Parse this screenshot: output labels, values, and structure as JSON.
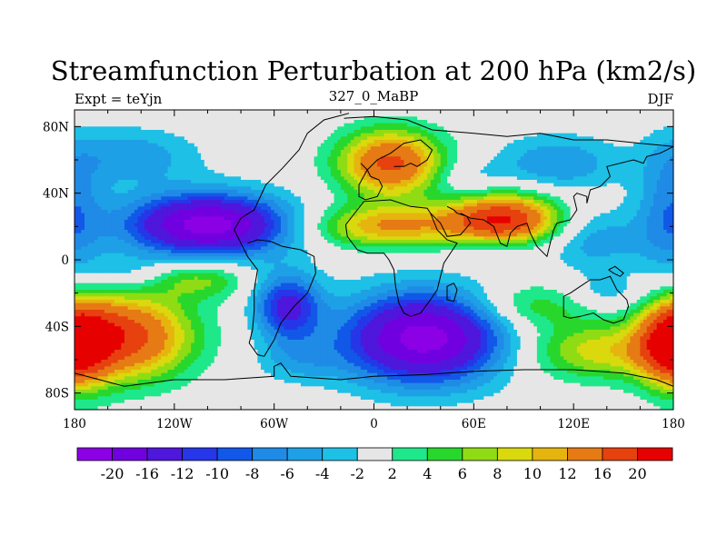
{
  "chart_data": {
    "type": "heatmap",
    "title": "Streamfunction Perturbation at 200 hPa (km2/s)",
    "left_label": "Expt = teYjn",
    "center_label": "327_0_MaBP",
    "right_label": "DJF",
    "x_ticks": [
      "180",
      "120W",
      "60W",
      "0",
      "60E",
      "120E",
      "180"
    ],
    "y_ticks": [
      "80N",
      "40N",
      "0",
      "40S",
      "80S"
    ],
    "xlim": [
      -180,
      180
    ],
    "ylim": [
      -90,
      90
    ],
    "x_tick_values": [
      -180,
      -120,
      -60,
      0,
      60,
      120,
      180
    ],
    "y_tick_values": [
      80,
      40,
      0,
      -40,
      -80
    ],
    "colorbar_labels": [
      "-20",
      "-16",
      "-12",
      "-10",
      "-8",
      "-6",
      "-4",
      "-2",
      "2",
      "4",
      "6",
      "8",
      "10",
      "12",
      "16",
      "20"
    ],
    "colorbar_colors": [
      "#8c00e6",
      "#7100e0",
      "#4f16dc",
      "#2537e8",
      "#1258e8",
      "#1f8be6",
      "#1ea0e6",
      "#1ec0e6",
      "#e6e6e6",
      "#1ee88a",
      "#28d72c",
      "#8fdc14",
      "#d9d90e",
      "#e6b40e",
      "#e67a14",
      "#e6410e",
      "#e60000"
    ],
    "background_color": "#e6e6e6",
    "anomalies": [
      {
        "lon": -100,
        "lat": 21,
        "sx": 34,
        "sy": 13,
        "amp": -22
      },
      {
        "lon": -145,
        "lat": 62,
        "sx": 28,
        "sy": 12,
        "amp": -5.5
      },
      {
        "lon": -150,
        "lat": -46,
        "sx": 28,
        "sy": 18,
        "amp": 18
      },
      {
        "lon": 30,
        "lat": -47,
        "sx": 34,
        "sy": 19,
        "amp": -22
      },
      {
        "lon": -52,
        "lat": -28,
        "sx": 14,
        "sy": 14,
        "amp": -13
      },
      {
        "lon": -45,
        "lat": -60,
        "sx": 18,
        "sy": 10,
        "amp": -4
      },
      {
        "lon": 10,
        "lat": 58,
        "sx": 22,
        "sy": 14,
        "amp": 17
      },
      {
        "lon": 78,
        "lat": 24,
        "sx": 24,
        "sy": 11,
        "amp": 20
      },
      {
        "lon": 8,
        "lat": 20,
        "sx": 32,
        "sy": 9,
        "amp": 12
      },
      {
        "lon": 55,
        "lat": 48,
        "sx": 16,
        "sy": 8,
        "amp": -3
      },
      {
        "lon": 110,
        "lat": 58,
        "sx": 26,
        "sy": 12,
        "amp": -6
      },
      {
        "lon": 132,
        "lat": 12,
        "sx": 22,
        "sy": 13,
        "amp": -5.5
      },
      {
        "lon": 178,
        "lat": 28,
        "sx": 14,
        "sy": 28,
        "amp": -7
      },
      {
        "lon": 95,
        "lat": -28,
        "sx": 26,
        "sy": 10,
        "amp": 6
      },
      {
        "lon": 135,
        "lat": -55,
        "sx": 32,
        "sy": 12,
        "amp": 9
      },
      {
        "lon": 180,
        "lat": -50,
        "sx": 14,
        "sy": 18,
        "amp": 18
      },
      {
        "lon": -105,
        "lat": -12,
        "sx": 20,
        "sy": 8,
        "amp": 6.5
      },
      {
        "lon": -150,
        "lat": -8,
        "sx": 18,
        "sy": 8,
        "amp": -3.5
      },
      {
        "lon": 140,
        "lat": -20,
        "sx": 18,
        "sy": 8,
        "amp": -3.5
      },
      {
        "lon": 72,
        "lat": 8,
        "sx": 18,
        "sy": 6,
        "amp": -3.5
      }
    ],
    "coastlines": [
      [
        [
          -84,
          18
        ],
        [
          -80,
          25
        ],
        [
          -72,
          30
        ],
        [
          -65,
          45
        ],
        [
          -55,
          55
        ],
        [
          -45,
          66
        ],
        [
          -40,
          76
        ],
        [
          -30,
          84
        ],
        [
          -15,
          88
        ]
      ],
      [
        [
          -84,
          18
        ],
        [
          -80,
          10
        ],
        [
          -76,
          2
        ],
        [
          -70,
          -6
        ],
        [
          -72,
          -18
        ],
        [
          -72,
          -30
        ],
        [
          -73,
          -42
        ],
        [
          -75,
          -50
        ],
        [
          -70,
          -57
        ],
        [
          -66,
          -58
        ]
      ],
      [
        [
          -66,
          -58
        ],
        [
          -60,
          -48
        ],
        [
          -56,
          -38
        ],
        [
          -48,
          -28
        ],
        [
          -40,
          -20
        ],
        [
          -35,
          -8
        ],
        [
          -36,
          2
        ],
        [
          -44,
          6
        ],
        [
          -55,
          8
        ],
        [
          -62,
          11
        ],
        [
          -70,
          12
        ],
        [
          -76,
          10
        ]
      ],
      [
        [
          -18,
          85
        ],
        [
          0,
          86
        ],
        [
          20,
          84
        ],
        [
          35,
          78
        ]
      ],
      [
        [
          -8,
          58
        ],
        [
          -4,
          54
        ],
        [
          -9,
          45
        ],
        [
          -9,
          38
        ],
        [
          -5,
          36
        ],
        [
          2,
          38
        ],
        [
          5,
          44
        ],
        [
          3,
          48
        ],
        [
          -2,
          50
        ],
        [
          -4,
          54
        ],
        [
          2,
          60
        ],
        [
          10,
          64
        ],
        [
          18,
          70
        ],
        [
          28,
          72
        ],
        [
          35,
          66
        ],
        [
          32,
          60
        ],
        [
          26,
          56
        ],
        [
          22,
          58
        ],
        [
          18,
          56
        ],
        [
          12,
          56
        ]
      ],
      [
        [
          -17,
          21
        ],
        [
          -16,
          14
        ],
        [
          -10,
          6
        ],
        [
          -4,
          4
        ],
        [
          6,
          4
        ],
        [
          9,
          0
        ],
        [
          12,
          -6
        ],
        [
          13,
          -16
        ],
        [
          15,
          -26
        ],
        [
          18,
          -32
        ],
        [
          22,
          -34
        ],
        [
          28,
          -32
        ],
        [
          34,
          -24
        ],
        [
          38,
          -18
        ],
        [
          40,
          -10
        ],
        [
          42,
          -2
        ],
        [
          50,
          10
        ],
        [
          44,
          12
        ],
        [
          38,
          18
        ],
        [
          34,
          28
        ],
        [
          32,
          31
        ],
        [
          22,
          32
        ],
        [
          10,
          36
        ],
        [
          -6,
          35
        ],
        [
          -10,
          30
        ],
        [
          -17,
          21
        ]
      ],
      [
        [
          48,
          -14
        ],
        [
          50,
          -18
        ],
        [
          48,
          -25
        ],
        [
          44,
          -24
        ],
        [
          44,
          -16
        ],
        [
          48,
          -14
        ]
      ],
      [
        [
          34,
          28
        ],
        [
          40,
          22
        ],
        [
          44,
          14
        ],
        [
          52,
          15
        ],
        [
          58,
          22
        ],
        [
          56,
          26
        ],
        [
          50,
          28
        ],
        [
          48,
          30
        ],
        [
          44,
          32
        ]
      ],
      [
        [
          52,
          28
        ],
        [
          58,
          25
        ],
        [
          66,
          24
        ],
        [
          72,
          20
        ],
        [
          76,
          10
        ],
        [
          80,
          8
        ],
        [
          82,
          16
        ],
        [
          86,
          20
        ],
        [
          92,
          22
        ],
        [
          94,
          16
        ],
        [
          98,
          8
        ],
        [
          102,
          4
        ],
        [
          104,
          2
        ],
        [
          106,
          10
        ],
        [
          108,
          18
        ],
        [
          110,
          22
        ],
        [
          118,
          24
        ],
        [
          122,
          30
        ],
        [
          120,
          38
        ],
        [
          122,
          40
        ],
        [
          128,
          38
        ],
        [
          128,
          34
        ],
        [
          130,
          42
        ],
        [
          136,
          44
        ],
        [
          142,
          50
        ],
        [
          140,
          56
        ],
        [
          156,
          60
        ],
        [
          162,
          58
        ],
        [
          164,
          62
        ],
        [
          172,
          64
        ],
        [
          180,
          68
        ]
      ],
      [
        [
          35,
          78
        ],
        [
          60,
          76
        ],
        [
          80,
          74
        ],
        [
          100,
          76
        ],
        [
          120,
          72
        ],
        [
          140,
          72
        ],
        [
          160,
          70
        ],
        [
          180,
          68
        ]
      ],
      [
        [
          114,
          -22
        ],
        [
          114,
          -34
        ],
        [
          118,
          -35
        ],
        [
          124,
          -34
        ],
        [
          132,
          -32
        ],
        [
          138,
          -36
        ],
        [
          144,
          -38
        ],
        [
          150,
          -36
        ],
        [
          153,
          -28
        ],
        [
          152,
          -24
        ],
        [
          146,
          -18
        ],
        [
          142,
          -10
        ],
        [
          136,
          -12
        ],
        [
          130,
          -12
        ],
        [
          124,
          -16
        ],
        [
          118,
          -20
        ],
        [
          114,
          -22
        ]
      ],
      [
        [
          -180,
          -68
        ],
        [
          -150,
          -76
        ],
        [
          -120,
          -72
        ],
        [
          -90,
          -72
        ],
        [
          -60,
          -70
        ],
        [
          -60,
          -64
        ],
        [
          -56,
          -62
        ],
        [
          -50,
          -70
        ],
        [
          -20,
          -72
        ],
        [
          0,
          -70
        ],
        [
          30,
          -69
        ],
        [
          60,
          -67
        ],
        [
          90,
          -66
        ],
        [
          120,
          -66
        ],
        [
          150,
          -68
        ],
        [
          170,
          -72
        ],
        [
          180,
          -76
        ]
      ],
      [
        [
          -180,
          -82
        ],
        [
          -180,
          -90
        ]
      ],
      [
        [
          141,
          -6
        ],
        [
          144,
          -8
        ],
        [
          148,
          -10
        ],
        [
          150,
          -8
        ],
        [
          145,
          -4
        ],
        [
          141,
          -6
        ]
      ]
    ]
  }
}
